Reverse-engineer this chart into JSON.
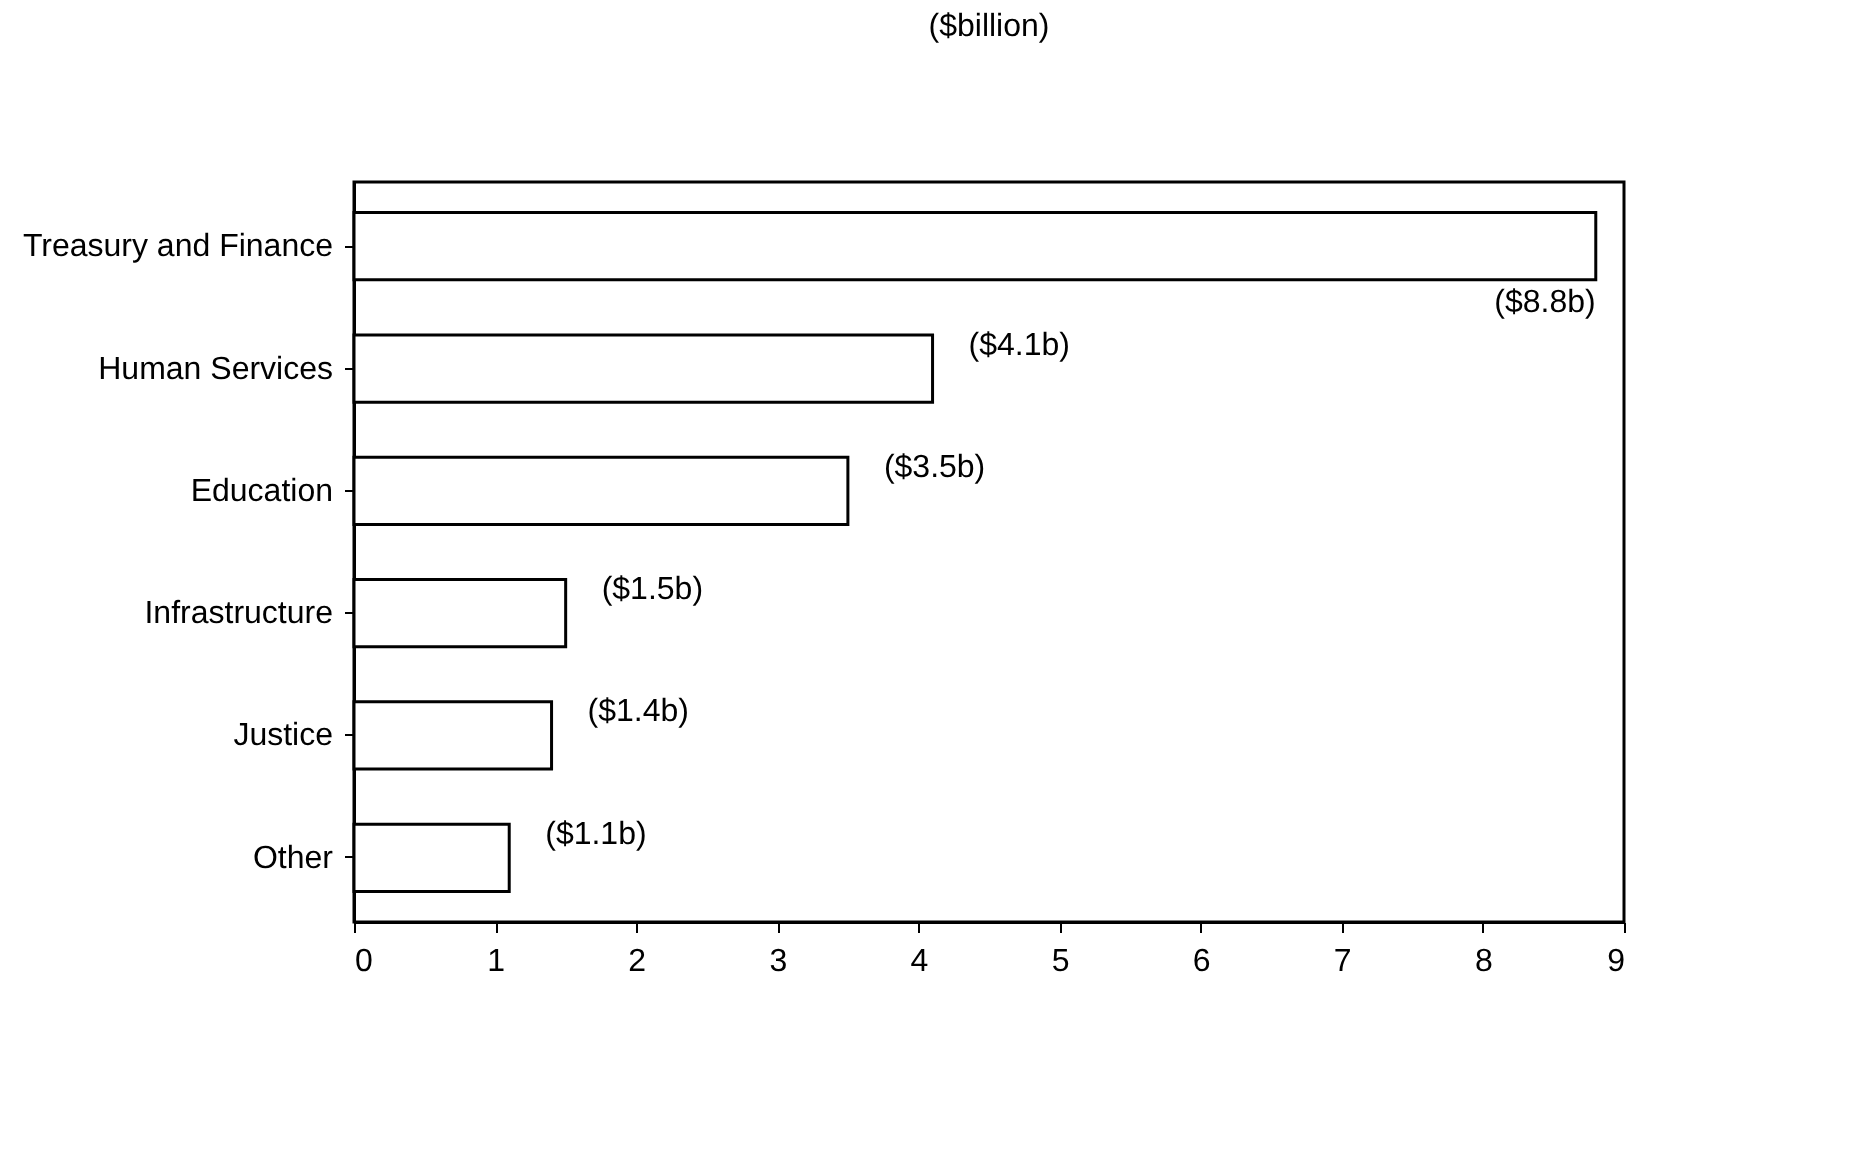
{
  "chart_data": {
    "type": "bar",
    "orientation": "horizontal",
    "title": "($billion)",
    "categories": [
      "Treasury and Finance",
      "Human Services",
      "Education",
      "Infrastructure",
      "Justice",
      "Other"
    ],
    "values": [
      8.8,
      4.1,
      3.5,
      1.5,
      1.4,
      1.1
    ],
    "value_labels": [
      "($8.8b)",
      "($4.1b)",
      "($3.5b)",
      "($1.5b)",
      "($1.4b)",
      "($1.1b)"
    ],
    "color": "#ffffff",
    "xlim": [
      0,
      9
    ],
    "xticks": [
      0,
      1,
      2,
      3,
      4,
      5,
      6,
      7,
      8,
      9
    ],
    "grid": false
  }
}
